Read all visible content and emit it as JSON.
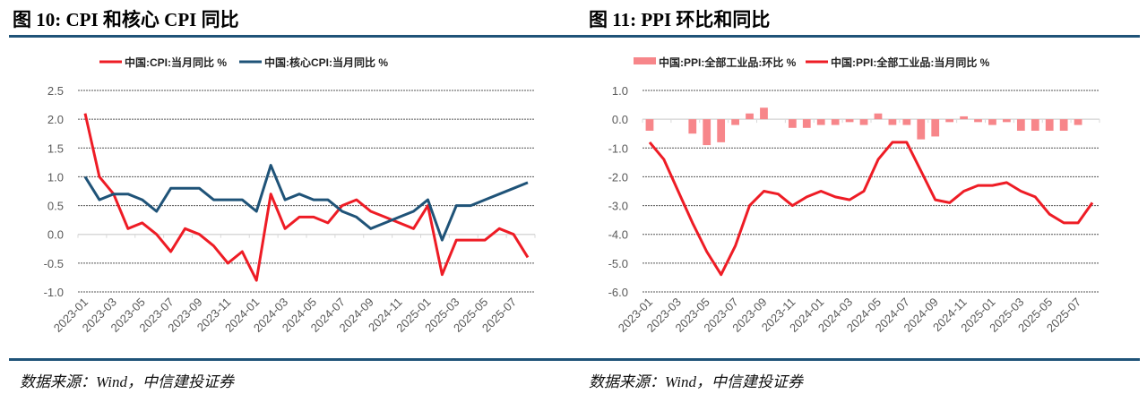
{
  "panels": {
    "left": {
      "title": "图 10: CPI 和核心 CPI 同比",
      "source": "数据来源：Wind，中信建投证券"
    },
    "right": {
      "title": "图 11: PPI 环比和同比",
      "source": "数据来源：Wind，中信建投证券"
    }
  },
  "colors": {
    "rule": "#1f5378",
    "cpi": "#ee1c25",
    "core": "#1f5378",
    "ppi_mom": "#f7868a",
    "ppi_yoy": "#ee1c25",
    "grid": "#555555",
    "zero": "#d9d9d9"
  },
  "chart_data": [
    {
      "type": "line",
      "title": "图 10: CPI 和核心 CPI 同比",
      "x": [
        "2023-01",
        "2023-02",
        "2023-03",
        "2023-04",
        "2023-05",
        "2023-06",
        "2023-07",
        "2023-08",
        "2023-09",
        "2023-10",
        "2023-11",
        "2023-12",
        "2024-01",
        "2024-02",
        "2024-03",
        "2024-04",
        "2024-05",
        "2024-06",
        "2024-07",
        "2024-08",
        "2024-09",
        "2024-10",
        "2024-11",
        "2024-12",
        "2025-01",
        "2025-02",
        "2025-03",
        "2025-04",
        "2025-05",
        "2025-06",
        "2025-07",
        "2025-08"
      ],
      "x_tick_labels": [
        "2023-01",
        "2023-03",
        "2023-05",
        "2023-07",
        "2023-09",
        "2023-11",
        "2024-01",
        "2024-03",
        "2024-05",
        "2024-07",
        "2024-09",
        "2024-11",
        "2025-01",
        "2025-03",
        "2025-05",
        "2025-07"
      ],
      "y_tick_labels": [
        "2.5",
        "2.0",
        "1.5",
        "1.0",
        "0.5",
        "0.0",
        "-0.5",
        "-1.0"
      ],
      "ylim": [
        -1.0,
        2.5
      ],
      "grid": true,
      "legend": "top",
      "series": [
        {
          "name": "中国:CPI:当月同比 %",
          "kind": "line",
          "values": [
            2.1,
            1.0,
            0.7,
            0.1,
            0.2,
            0.0,
            -0.3,
            0.1,
            0.0,
            -0.2,
            -0.5,
            -0.3,
            -0.8,
            0.7,
            0.1,
            0.3,
            0.3,
            0.2,
            0.5,
            0.6,
            0.4,
            0.3,
            0.2,
            0.1,
            0.5,
            -0.7,
            -0.1,
            -0.1,
            -0.1,
            0.1,
            0.0,
            -0.4
          ]
        },
        {
          "name": "中国:核心CPI:当月同比 %",
          "kind": "line",
          "values": [
            1.0,
            0.6,
            0.7,
            0.7,
            0.6,
            0.4,
            0.8,
            0.8,
            0.8,
            0.6,
            0.6,
            0.6,
            0.4,
            1.2,
            0.6,
            0.7,
            0.6,
            0.6,
            0.4,
            0.3,
            0.1,
            0.2,
            0.3,
            0.4,
            0.6,
            -0.1,
            0.5,
            0.5,
            0.6,
            0.7,
            0.8,
            0.9
          ]
        }
      ]
    },
    {
      "type": "bar+line",
      "title": "图 11: PPI 环比和同比",
      "x": [
        "2023-01",
        "2023-02",
        "2023-03",
        "2023-04",
        "2023-05",
        "2023-06",
        "2023-07",
        "2023-08",
        "2023-09",
        "2023-10",
        "2023-11",
        "2023-12",
        "2024-01",
        "2024-02",
        "2024-03",
        "2024-04",
        "2024-05",
        "2024-06",
        "2024-07",
        "2024-08",
        "2024-09",
        "2024-10",
        "2024-11",
        "2024-12",
        "2025-01",
        "2025-02",
        "2025-03",
        "2025-04",
        "2025-05",
        "2025-06",
        "2025-07",
        "2025-08"
      ],
      "x_tick_labels": [
        "2023-01",
        "2023-03",
        "2023-05",
        "2023-07",
        "2023-09",
        "2023-11",
        "2024-01",
        "2024-03",
        "2024-05",
        "2024-07",
        "2024-09",
        "2024-11",
        "2025-01",
        "2025-03",
        "2025-05",
        "2025-07"
      ],
      "y_tick_labels": [
        "1.0",
        "0.0",
        "-1.0",
        "-2.0",
        "-3.0",
        "-4.0",
        "-5.0",
        "-6.0"
      ],
      "ylim": [
        -6.0,
        1.0
      ],
      "grid": true,
      "legend": "top",
      "series": [
        {
          "name": "中国:PPI:全部工业品:环比 %",
          "kind": "bar",
          "values": [
            -0.4,
            0.0,
            0.0,
            -0.5,
            -0.9,
            -0.8,
            -0.2,
            0.2,
            0.4,
            0.0,
            -0.3,
            -0.3,
            -0.2,
            -0.2,
            -0.1,
            -0.2,
            0.2,
            -0.2,
            -0.2,
            -0.7,
            -0.6,
            -0.1,
            0.1,
            -0.1,
            -0.2,
            -0.1,
            -0.4,
            -0.4,
            -0.4,
            -0.4,
            -0.2,
            0.0
          ]
        },
        {
          "name": "中国:PPI:全部工业品:当月同比 %",
          "kind": "line",
          "values": [
            -0.8,
            -1.4,
            -2.5,
            -3.6,
            -4.6,
            -5.4,
            -4.4,
            -3.0,
            -2.5,
            -2.6,
            -3.0,
            -2.7,
            -2.5,
            -2.7,
            -2.8,
            -2.5,
            -1.4,
            -0.8,
            -0.8,
            -1.8,
            -2.8,
            -2.9,
            -2.5,
            -2.3,
            -2.3,
            -2.2,
            -2.5,
            -2.7,
            -3.3,
            -3.6,
            -3.6,
            -2.9
          ]
        }
      ]
    }
  ]
}
